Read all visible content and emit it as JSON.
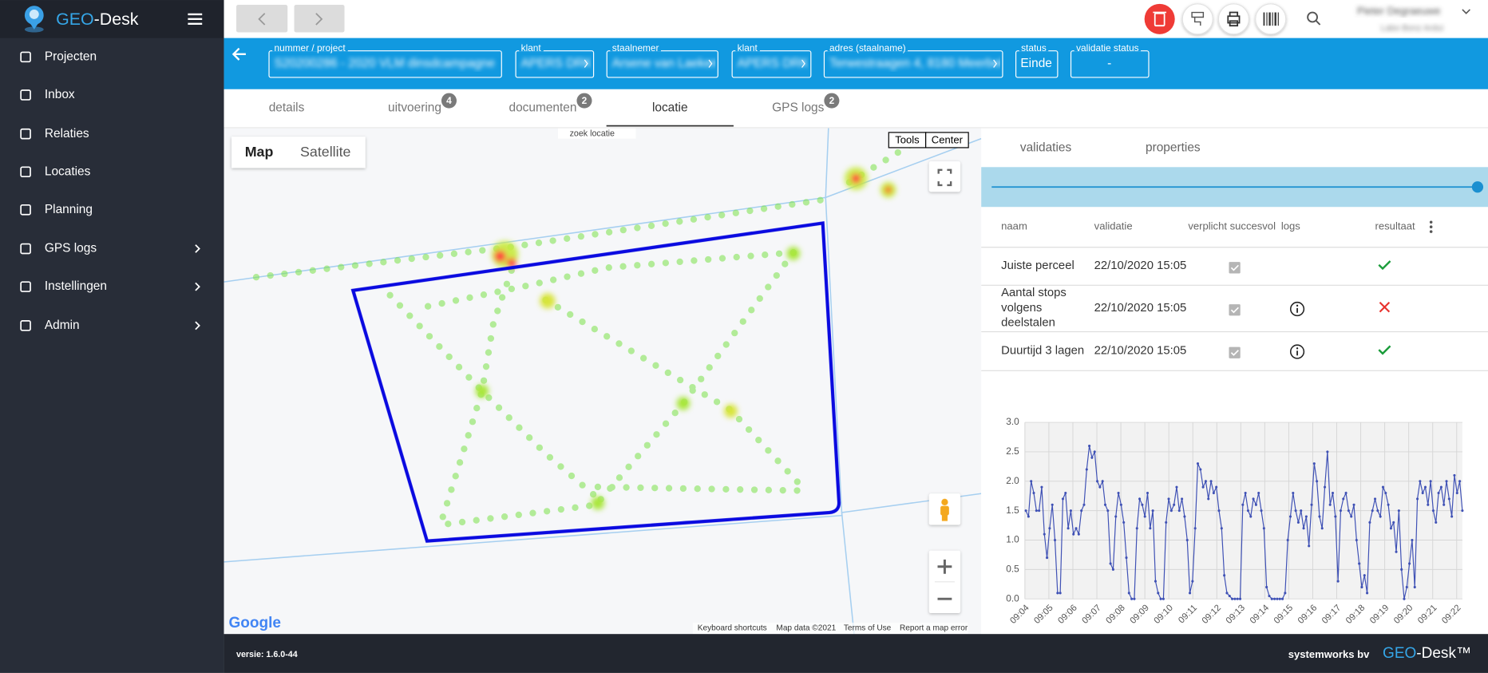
{
  "app": {
    "brand_prefix": "GEO",
    "brand_suffix": "-Desk"
  },
  "menu": [
    {
      "label": "Projecten",
      "submenu": false
    },
    {
      "label": "Inbox",
      "submenu": false
    },
    {
      "label": "Relaties",
      "submenu": false
    },
    {
      "label": "Locaties",
      "submenu": false
    },
    {
      "label": "Planning",
      "submenu": false
    },
    {
      "label": "GPS logs",
      "submenu": true
    },
    {
      "label": "Instellingen",
      "submenu": true
    },
    {
      "label": "Admin",
      "submenu": true
    }
  ],
  "user": {
    "name": "Pieter Degraeuwe",
    "subtitle": "Labo Bonz Ardui"
  },
  "fields": [
    {
      "label": "nummer / project",
      "value": "S20200286 - 2020 VLM dinsdcampagne",
      "blurred": true
    },
    {
      "label": "klant",
      "value": "APERS DRK",
      "blurred": true
    },
    {
      "label": "staalnemer",
      "value": "Arsene van Laeken",
      "blurred": true
    },
    {
      "label": "klant",
      "value": "APERS DRK",
      "blurred": true
    },
    {
      "label": "adres (staalname)",
      "value": "Terwestraagen 4, 8180 Meerbeke",
      "blurred": true
    },
    {
      "label": "status",
      "value": "Einde",
      "blurred": false
    },
    {
      "label": "validatie status",
      "value": "-",
      "blurred": false
    }
  ],
  "tabs": {
    "active": 3,
    "items": [
      {
        "label": "details"
      },
      {
        "label": "uitvoering",
        "badge": 4
      },
      {
        "label": "documenten",
        "badge": 2
      },
      {
        "label": "locatie"
      },
      {
        "label": "GPS logs",
        "badge": 2
      }
    ]
  },
  "map": {
    "search": "zoek locatie",
    "map_types": [
      "Map",
      "Satellite"
    ],
    "buttons": [
      "Tools",
      "Center"
    ],
    "logo": "Google",
    "attribution": [
      "Keyboard shortcuts",
      "Map data ©2021",
      "Terms of Use",
      "Report a map error"
    ]
  },
  "panel": {
    "tabs": [
      "validaties",
      "properties"
    ],
    "columns": [
      "naam",
      "validatie",
      "verplicht succesvol",
      "logs",
      "resultaat"
    ],
    "rows": [
      {
        "name_lines": [
          "Juiste perceel"
        ],
        "date": "22/10/2020 15:05",
        "has_logs": false,
        "passed": true
      },
      {
        "name_lines": [
          "Aantal stops",
          "volgens",
          "deelstalen"
        ],
        "date": "22/10/2020 15:05",
        "has_logs": true,
        "passed": false
      },
      {
        "name_lines": [
          "Duurtijd 3 lagen"
        ],
        "date": "22/10/2020 15:05",
        "has_logs": true,
        "passed": true
      }
    ]
  },
  "chart_data": {
    "type": "line",
    "color": "#3f51b5",
    "grid": true,
    "xticks": [
      "09:04",
      "09:05",
      "09:06",
      "09:07",
      "09:08",
      "09:09",
      "09:10",
      "09:11",
      "09:12",
      "09:13",
      "09:14",
      "09:15",
      "09:16",
      "09:17",
      "09:18",
      "09:19",
      "09:20",
      "09:21",
      "09:22"
    ],
    "ylim": [
      0,
      3
    ],
    "yticks": [
      {
        "value": 0,
        "label": "0.0"
      },
      0.5,
      {
        "value": 1,
        "label": "1.0"
      },
      1.5,
      {
        "value": 2,
        "label": "2.0"
      },
      2.5,
      {
        "value": 3,
        "label": "3.0"
      }
    ],
    "values": [
      1.5,
      1.4,
      2.0,
      1.8,
      1.5,
      1.5,
      1.9,
      1.1,
      0.7,
      1.2,
      1.6,
      1.0,
      0.1,
      0.1,
      1.7,
      1.8,
      1.2,
      1.5,
      1.1,
      1.2,
      1.1,
      1.5,
      1.6,
      2.2,
      2.6,
      2.4,
      2.5,
      2.0,
      1.9,
      2.0,
      1.6,
      1.5,
      0.6,
      0.5,
      1.4,
      1.8,
      1.6,
      1.3,
      0.7,
      0.1,
      0,
      0,
      1.2,
      1.7,
      1.6,
      1.4,
      1.8,
      1.2,
      1.5,
      0.3,
      0.1,
      0,
      0,
      1.3,
      1.7,
      1.5,
      1.6,
      1.9,
      1.5,
      1.7,
      1.4,
      1.0,
      0.1,
      0.3,
      1.2,
      2.3,
      2.2,
      1.9,
      2.0,
      1.7,
      2.0,
      1.8,
      1.9,
      1.5,
      1.2,
      0.4,
      0.1,
      0.05,
      0,
      0,
      0,
      0,
      1.6,
      1.8,
      1.5,
      1.4,
      1.7,
      1.6,
      1.8,
      1.5,
      1.2,
      0.2,
      0.05,
      0,
      0,
      0,
      0,
      0,
      0.1,
      1.0,
      1.4,
      1.8,
      1.5,
      1.3,
      1.5,
      1.2,
      1.4,
      0.9,
      1.6,
      2.3,
      2.0,
      1.4,
      1.2,
      1.9,
      2.5,
      1.6,
      1.8,
      1.4,
      0.3,
      1.5,
      1.7,
      1.8,
      1.5,
      1.4,
      1.6,
      1.0,
      0.6,
      0.2,
      0.4,
      0.1,
      1.3,
      1.5,
      1.7,
      1.5,
      1.4,
      1.9,
      1.8,
      1.6,
      1.2,
      1.3,
      0.8,
      1.5,
      0.5,
      0,
      0.2,
      0.6,
      1.0,
      0.2,
      1.7,
      2.0,
      1.8,
      1.9,
      1.6,
      2.0,
      1.5,
      1.3,
      1.8,
      1.9,
      1.6,
      2.0,
      1.7,
      1.4,
      2.1,
      1.8,
      2.0,
      1.5
    ]
  },
  "footer": {
    "version": "versie: 1.6.0-44",
    "company": "systemworks bv",
    "brand_prefix": "GEO",
    "brand_suffix": "-Desk™"
  }
}
